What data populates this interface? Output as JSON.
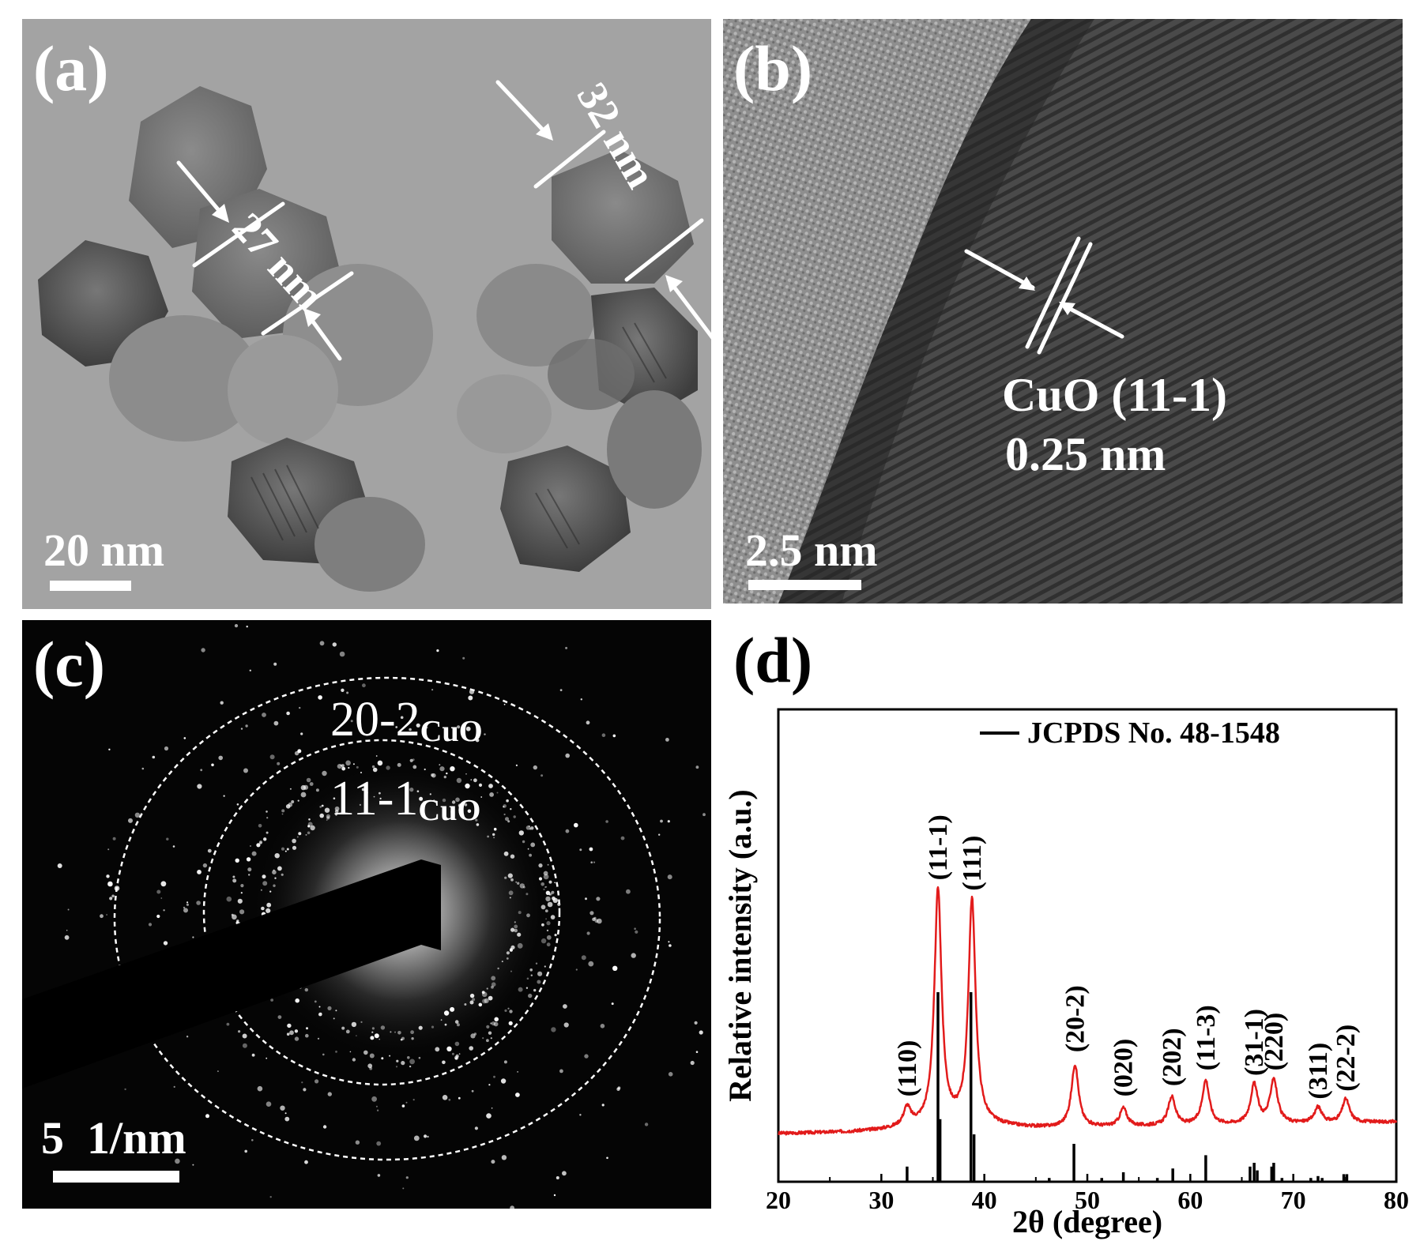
{
  "panels": {
    "a": {
      "label": "(a)",
      "scale_bar": "20 nm",
      "measurements": [
        "27 nm",
        "32 nm"
      ]
    },
    "b": {
      "label": "(b)",
      "scale_bar": "2.5 nm",
      "lattice_plane": "CuO (11-1)",
      "d_spacing": "0.25 nm"
    },
    "c": {
      "label": "(c)",
      "scale_bar": "5  1/nm",
      "rings": [
        {
          "index": "20-2",
          "phase": "CuO"
        },
        {
          "index": "11-1",
          "phase": "CuO"
        }
      ]
    },
    "d": {
      "label": "(d)"
    }
  },
  "chart_data": {
    "type": "line",
    "title": "",
    "xlabel": "2θ (degree)",
    "ylabel": "Relative intensity (a.u.)",
    "xlim": [
      20,
      80
    ],
    "xticks": [
      20,
      30,
      40,
      50,
      60,
      70,
      80
    ],
    "legend": {
      "entry": "JCPDS No. 48-1548",
      "placement": "top-right"
    },
    "colors": {
      "pattern": "#e21b1b",
      "reference": "#000000"
    },
    "pattern_peaks": [
      {
        "x": 32.5,
        "h": 0.07
      },
      {
        "x": 35.5,
        "h": 0.9
      },
      {
        "x": 38.8,
        "h": 0.86
      },
      {
        "x": 48.8,
        "h": 0.24
      },
      {
        "x": 53.5,
        "h": 0.07
      },
      {
        "x": 58.2,
        "h": 0.11
      },
      {
        "x": 61.5,
        "h": 0.17
      },
      {
        "x": 66.2,
        "h": 0.15
      },
      {
        "x": 68.1,
        "h": 0.17
      },
      {
        "x": 72.4,
        "h": 0.06
      },
      {
        "x": 75.1,
        "h": 0.09
      }
    ],
    "peak_labels": [
      {
        "text": "(110)",
        "x": 32.5
      },
      {
        "text": "(11-1)",
        "x": 35.5
      },
      {
        "text": "(111)",
        "x": 38.8
      },
      {
        "text": "(20-2)",
        "x": 48.8
      },
      {
        "text": "(020)",
        "x": 53.5
      },
      {
        "text": "(202)",
        "x": 58.2
      },
      {
        "text": "(11-3)",
        "x": 61.5
      },
      {
        "text": "(31-1)",
        "x": 66.2
      },
      {
        "text": "(220)",
        "x": 68.1
      },
      {
        "text": "(311)",
        "x": 72.4
      },
      {
        "text": "(22-2)",
        "x": 75.1
      }
    ],
    "reference_lines": [
      {
        "x": 32.5,
        "h": 0.08
      },
      {
        "x": 35.5,
        "h": 1.0
      },
      {
        "x": 35.7,
        "h": 0.33
      },
      {
        "x": 38.7,
        "h": 1.0
      },
      {
        "x": 39.0,
        "h": 0.25
      },
      {
        "x": 46.3,
        "h": 0.02
      },
      {
        "x": 48.7,
        "h": 0.2
      },
      {
        "x": 51.4,
        "h": 0.02
      },
      {
        "x": 53.5,
        "h": 0.05
      },
      {
        "x": 56.8,
        "h": 0.02
      },
      {
        "x": 58.3,
        "h": 0.07
      },
      {
        "x": 61.5,
        "h": 0.14
      },
      {
        "x": 65.8,
        "h": 0.08
      },
      {
        "x": 66.2,
        "h": 0.1
      },
      {
        "x": 66.5,
        "h": 0.06
      },
      {
        "x": 67.9,
        "h": 0.08
      },
      {
        "x": 68.1,
        "h": 0.1
      },
      {
        "x": 68.9,
        "h": 0.02
      },
      {
        "x": 71.7,
        "h": 0.02
      },
      {
        "x": 72.4,
        "h": 0.03
      },
      {
        "x": 72.8,
        "h": 0.02
      },
      {
        "x": 74.9,
        "h": 0.04
      },
      {
        "x": 75.2,
        "h": 0.04
      }
    ]
  }
}
